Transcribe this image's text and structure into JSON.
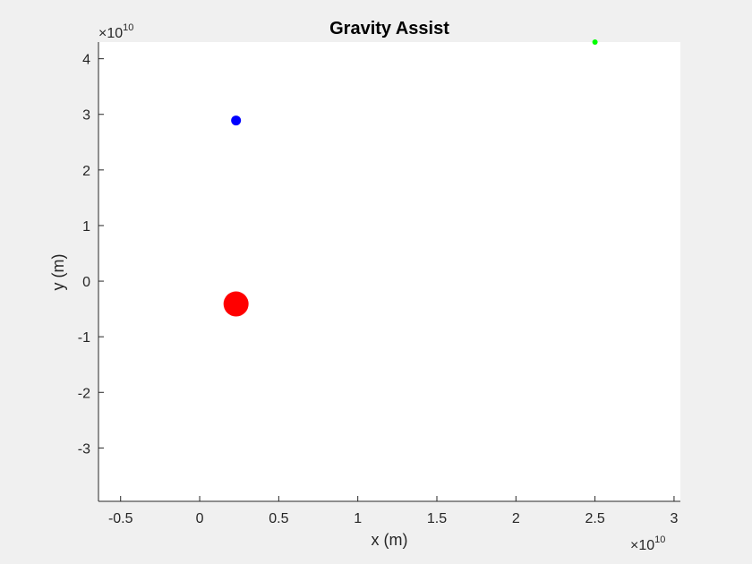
{
  "chart_data": {
    "type": "scatter",
    "title": "Gravity Assist",
    "xlabel": "x (m)",
    "ylabel": "y (m)",
    "x_multiplier": {
      "base": "×10",
      "exponent": "10"
    },
    "y_multiplier": {
      "base": "×10",
      "exponent": "10"
    },
    "xlim": [
      -0.64,
      3.04
    ],
    "ylim": [
      -3.96,
      4.3
    ],
    "x_ticks": [
      -0.5,
      0,
      0.5,
      1,
      1.5,
      2,
      2.5,
      3
    ],
    "x_tick_labels": [
      "-0.5",
      "0",
      "0.5",
      "1",
      "1.5",
      "2",
      "2.5",
      "3"
    ],
    "y_ticks": [
      -3,
      -2,
      -1,
      0,
      1,
      2,
      3,
      4
    ],
    "y_tick_labels": [
      "-3",
      "-2",
      "-1",
      "0",
      "1",
      "2",
      "3",
      "4"
    ],
    "grid": false,
    "series": [
      {
        "x": [
          0.23
        ],
        "y": [
          -0.41
        ],
        "color": "#ff0000",
        "marker": "large-dot"
      },
      {
        "x": [
          0.23
        ],
        "y": [
          2.89
        ],
        "color": "#0000ff",
        "marker": "medium-dot"
      },
      {
        "x": [
          2.5
        ],
        "y": [
          4.3
        ],
        "color": "#00ff00",
        "marker": "small-dot"
      }
    ],
    "colors": {
      "background": "#f0f0f0",
      "plot_area": "#ffffff",
      "axis": "#262626"
    }
  }
}
